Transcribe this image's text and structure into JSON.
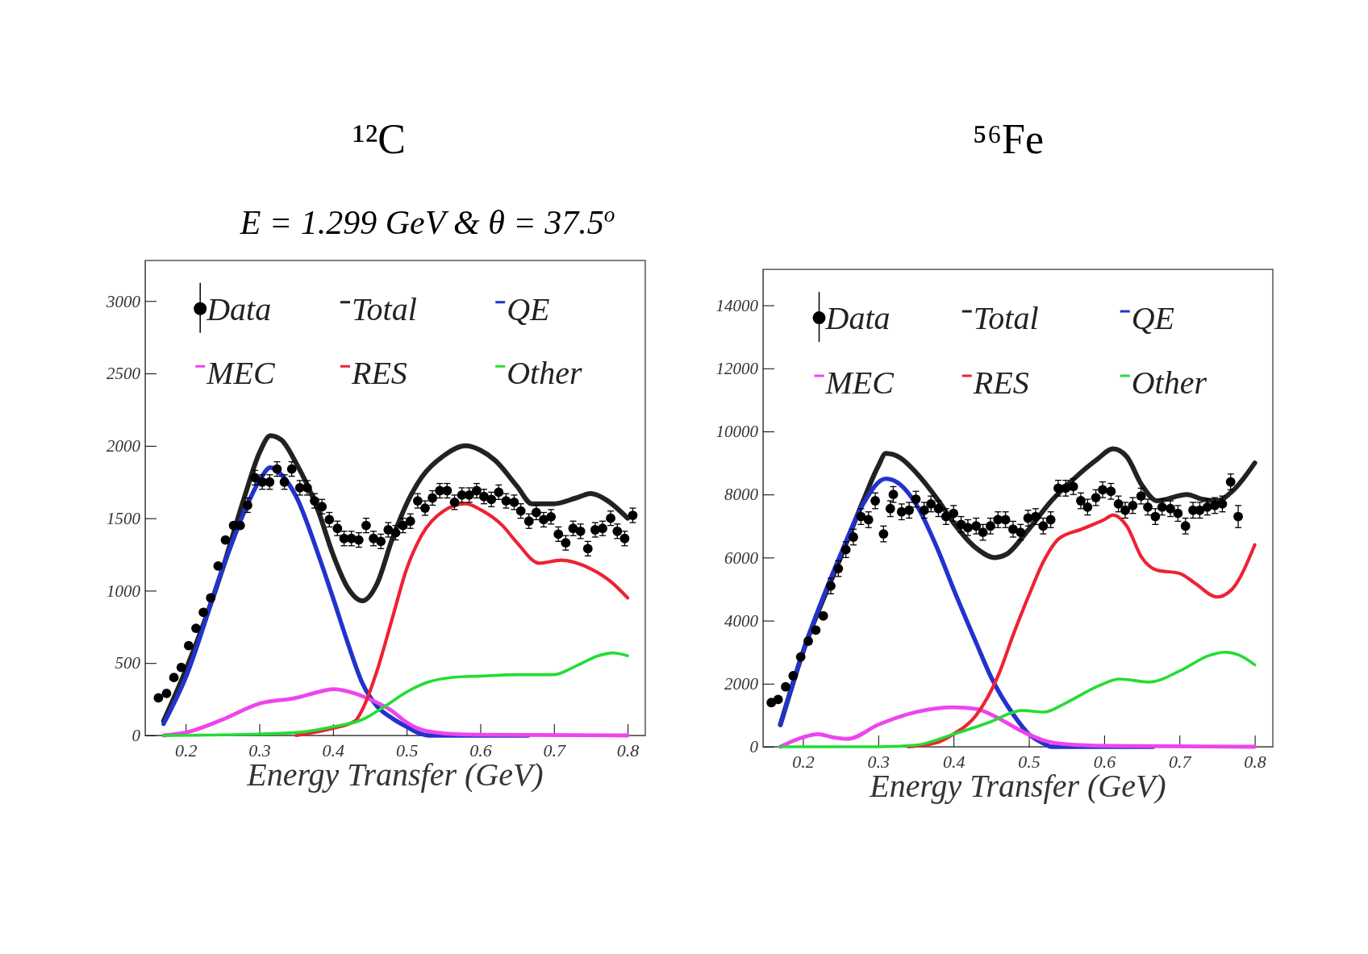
{
  "chart_data": [
    {
      "type": "line",
      "title": "¹²C",
      "subtitle": "E = 1.299 GeV &  θ = 37.5$^{o}$",
      "xlabel": "Energy Transfer (GeV)",
      "xlim": [
        0.145,
        0.824
      ],
      "xticks": [
        0.2,
        0.3,
        0.4,
        0.5,
        0.6,
        0.7,
        0.8
      ],
      "ylim": [
        0,
        3280
      ],
      "yticks": [
        0,
        500,
        1000,
        1500,
        2000,
        2500,
        3000
      ],
      "legend": "top",
      "grid": false,
      "series": [
        {
          "name": "Data",
          "type": "scatter",
          "marker": "circle",
          "color": "#000000",
          "x": [
            0.163,
            0.174,
            0.184,
            0.194,
            0.204,
            0.214,
            0.224,
            0.234,
            0.244,
            0.254,
            0.265,
            0.274,
            0.284,
            0.294,
            0.304,
            0.314,
            0.324,
            0.334,
            0.344,
            0.355,
            0.365,
            0.375,
            0.385,
            0.395,
            0.406,
            0.415,
            0.425,
            0.435,
            0.445,
            0.455,
            0.465,
            0.475,
            0.485,
            0.495,
            0.505,
            0.515,
            0.525,
            0.535,
            0.545,
            0.555,
            0.565,
            0.575,
            0.585,
            0.595,
            0.605,
            0.615,
            0.625,
            0.635,
            0.646,
            0.655,
            0.666,
            0.676,
            0.686,
            0.696,
            0.706,
            0.716,
            0.726,
            0.736,
            0.746,
            0.756,
            0.766,
            0.777,
            0.786,
            0.796,
            0.807
          ],
          "values": [
            260,
            290,
            400,
            470,
            620,
            740,
            850,
            950,
            1170,
            1350,
            1450,
            1450,
            1590,
            1780,
            1750,
            1750,
            1840,
            1750,
            1840,
            1710,
            1710,
            1620,
            1580,
            1490,
            1430,
            1360,
            1360,
            1350,
            1450,
            1360,
            1340,
            1420,
            1400,
            1450,
            1480,
            1620,
            1570,
            1640,
            1690,
            1690,
            1610,
            1660,
            1660,
            1690,
            1650,
            1630,
            1680,
            1620,
            1610,
            1550,
            1480,
            1540,
            1490,
            1510,
            1390,
            1330,
            1430,
            1410,
            1290,
            1420,
            1430,
            1500,
            1410,
            1360,
            1520
          ],
          "errors": [
            null,
            null,
            null,
            null,
            null,
            null,
            null,
            null,
            null,
            null,
            null,
            null,
            50,
            50,
            50,
            50,
            50,
            50,
            50,
            50,
            50,
            50,
            50,
            50,
            50,
            50,
            50,
            50,
            50,
            50,
            50,
            50,
            50,
            50,
            50,
            50,
            50,
            50,
            50,
            50,
            50,
            50,
            50,
            50,
            50,
            50,
            50,
            50,
            50,
            50,
            50,
            50,
            50,
            50,
            50,
            50,
            50,
            50,
            50,
            50,
            50,
            50,
            50,
            50,
            50
          ]
        },
        {
          "name": "Total",
          "color": "#222222",
          "x": [
            0.17,
            0.2,
            0.25,
            0.28,
            0.3,
            0.315,
            0.33,
            0.35,
            0.38,
            0.4,
            0.42,
            0.44,
            0.46,
            0.48,
            0.5,
            0.52,
            0.55,
            0.58,
            0.6,
            0.62,
            0.65,
            0.67,
            0.7,
            0.73,
            0.75,
            0.77,
            0.8
          ],
          "values": [
            100,
            450,
            1150,
            1650,
            1950,
            2070,
            2040,
            1880,
            1550,
            1250,
            1020,
            930,
            1050,
            1350,
            1600,
            1780,
            1930,
            2000,
            1970,
            1900,
            1720,
            1600,
            1600,
            1640,
            1670,
            1630,
            1500
          ]
        },
        {
          "name": "QE",
          "color": "#2233cc",
          "x": [
            0.17,
            0.2,
            0.25,
            0.28,
            0.3,
            0.315,
            0.33,
            0.35,
            0.38,
            0.4,
            0.42,
            0.44,
            0.46,
            0.48,
            0.5,
            0.52,
            0.53,
            0.6,
            0.665
          ],
          "values": [
            80,
            400,
            1150,
            1550,
            1760,
            1850,
            1800,
            1650,
            1250,
            950,
            640,
            360,
            200,
            120,
            60,
            10,
            0,
            0,
            0
          ]
        },
        {
          "name": "MEC",
          "color": "#ee44ee",
          "x": [
            0.17,
            0.2,
            0.25,
            0.3,
            0.35,
            0.38,
            0.4,
            0.43,
            0.45,
            0.48,
            0.5,
            0.52,
            0.55,
            0.6,
            0.8
          ],
          "values": [
            0,
            20,
            110,
            220,
            260,
            300,
            320,
            290,
            250,
            170,
            90,
            40,
            15,
            5,
            0
          ]
        },
        {
          "name": "RES",
          "color": "#ee2233",
          "x": [
            0.35,
            0.4,
            0.43,
            0.44,
            0.46,
            0.48,
            0.5,
            0.52,
            0.55,
            0.58,
            0.6,
            0.63,
            0.65,
            0.68,
            0.71,
            0.75,
            0.78,
            0.8
          ],
          "values": [
            0,
            50,
            100,
            180,
            450,
            800,
            1150,
            1380,
            1550,
            1600,
            1560,
            1450,
            1330,
            1190,
            1210,
            1150,
            1050,
            950
          ]
        },
        {
          "name": "Other",
          "color": "#22dd33",
          "x": [
            0.17,
            0.3,
            0.35,
            0.4,
            0.44,
            0.47,
            0.5,
            0.53,
            0.56,
            0.6,
            0.65,
            0.7,
            0.73,
            0.76,
            0.78,
            0.8
          ],
          "values": [
            0,
            10,
            20,
            60,
            110,
            200,
            300,
            370,
            400,
            410,
            420,
            420,
            480,
            550,
            570,
            550
          ]
        }
      ]
    },
    {
      "type": "line",
      "title": "⁵⁶Fe",
      "xlabel": "Energy Transfer (GeV)",
      "xlim": [
        0.147,
        0.824
      ],
      "xticks": [
        0.2,
        0.3,
        0.4,
        0.5,
        0.6,
        0.7,
        0.8
      ],
      "ylim": [
        0,
        15140
      ],
      "yticks": [
        0,
        2000,
        4000,
        6000,
        8000,
        10000,
        12000,
        14000
      ],
      "legend": "top",
      "grid": false,
      "series": [
        {
          "name": "Data",
          "type": "scatter",
          "marker": "circle",
          "color": "#000000",
          "x": [
            0.158,
            0.167,
            0.177,
            0.187,
            0.197,
            0.207,
            0.217,
            0.227,
            0.237,
            0.247,
            0.257,
            0.267,
            0.277,
            0.287,
            0.296,
            0.307,
            0.316,
            0.32,
            0.331,
            0.341,
            0.35,
            0.361,
            0.37,
            0.38,
            0.39,
            0.4,
            0.41,
            0.419,
            0.43,
            0.439,
            0.449,
            0.459,
            0.469,
            0.479,
            0.489,
            0.499,
            0.509,
            0.519,
            0.529,
            0.539,
            0.549,
            0.559,
            0.569,
            0.578,
            0.589,
            0.598,
            0.609,
            0.619,
            0.628,
            0.638,
            0.649,
            0.658,
            0.668,
            0.677,
            0.688,
            0.698,
            0.708,
            0.718,
            0.727,
            0.737,
            0.747,
            0.757,
            0.768,
            0.778
          ],
          "values": [
            1400,
            1500,
            1900,
            2250,
            2850,
            3350,
            3700,
            4150,
            5100,
            5650,
            6250,
            6650,
            7300,
            7200,
            7800,
            6750,
            7550,
            8000,
            7450,
            7500,
            7850,
            7500,
            7700,
            7550,
            7300,
            7400,
            7050,
            6950,
            7000,
            6800,
            7000,
            7200,
            7200,
            6900,
            6800,
            7250,
            7300,
            7000,
            7200,
            8200,
            8200,
            8250,
            7800,
            7600,
            7900,
            8150,
            8100,
            7700,
            7500,
            7650,
            7950,
            7600,
            7300,
            7600,
            7550,
            7400,
            7000,
            7500,
            7500,
            7600,
            7650,
            7700,
            8400,
            7300
          ],
          "errors": [
            null,
            null,
            null,
            null,
            null,
            null,
            null,
            null,
            250,
            250,
            250,
            250,
            250,
            250,
            250,
            250,
            250,
            250,
            250,
            250,
            250,
            250,
            250,
            250,
            250,
            250,
            250,
            250,
            250,
            250,
            250,
            250,
            250,
            250,
            250,
            250,
            250,
            250,
            250,
            250,
            250,
            250,
            250,
            250,
            250,
            250,
            250,
            250,
            250,
            250,
            250,
            250,
            250,
            250,
            250,
            250,
            250,
            250,
            250,
            250,
            250,
            250,
            250,
            350
          ]
        },
        {
          "name": "Total",
          "color": "#222222",
          "x": [
            0.17,
            0.2,
            0.25,
            0.28,
            0.3,
            0.31,
            0.33,
            0.35,
            0.38,
            0.4,
            0.43,
            0.455,
            0.47,
            0.5,
            0.53,
            0.56,
            0.59,
            0.612,
            0.63,
            0.65,
            0.67,
            0.71,
            0.73,
            0.75,
            0.77,
            0.8
          ],
          "values": [
            700,
            3000,
            6000,
            7800,
            8900,
            9300,
            9150,
            8700,
            7800,
            7100,
            6300,
            6000,
            6100,
            6900,
            7800,
            8500,
            9100,
            9450,
            9200,
            8300,
            7800,
            8000,
            7850,
            7800,
            8100,
            9000
          ]
        },
        {
          "name": "QE",
          "color": "#2233cc",
          "x": [
            0.17,
            0.2,
            0.25,
            0.28,
            0.31,
            0.33,
            0.35,
            0.38,
            0.4,
            0.43,
            0.45,
            0.48,
            0.5,
            0.52,
            0.53,
            0.6,
            0.665
          ],
          "values": [
            700,
            3000,
            6100,
            7700,
            8500,
            8300,
            7700,
            6200,
            5000,
            3300,
            2200,
            1000,
            400,
            100,
            0,
            0,
            0
          ]
        },
        {
          "name": "MEC",
          "color": "#ee44ee",
          "x": [
            0.17,
            0.2,
            0.22,
            0.24,
            0.26,
            0.3,
            0.35,
            0.4,
            0.43,
            0.46,
            0.49,
            0.52,
            0.55,
            0.6,
            0.8
          ],
          "values": [
            0,
            300,
            400,
            300,
            250,
            700,
            1100,
            1250,
            1200,
            900,
            500,
            200,
            80,
            30,
            0
          ]
        },
        {
          "name": "RES",
          "color": "#ee2233",
          "x": [
            0.34,
            0.38,
            0.4,
            0.43,
            0.46,
            0.48,
            0.5,
            0.52,
            0.54,
            0.57,
            0.6,
            0.612,
            0.63,
            0.65,
            0.67,
            0.7,
            0.72,
            0.75,
            0.77,
            0.8
          ],
          "values": [
            0,
            150,
            400,
            1000,
            2300,
            3600,
            4800,
            5900,
            6600,
            6900,
            7200,
            7350,
            7000,
            6000,
            5600,
            5500,
            5200,
            4750,
            5000,
            6400
          ]
        },
        {
          "name": "Other",
          "color": "#22dd33",
          "x": [
            0.17,
            0.3,
            0.35,
            0.4,
            0.45,
            0.48,
            0.49,
            0.52,
            0.55,
            0.59,
            0.62,
            0.66,
            0.7,
            0.74,
            0.76,
            0.78,
            0.8
          ],
          "values": [
            0,
            0,
            50,
            400,
            800,
            1100,
            1150,
            1100,
            1400,
            1900,
            2150,
            2050,
            2400,
            2900,
            3000,
            2900,
            2600
          ]
        }
      ]
    }
  ]
}
